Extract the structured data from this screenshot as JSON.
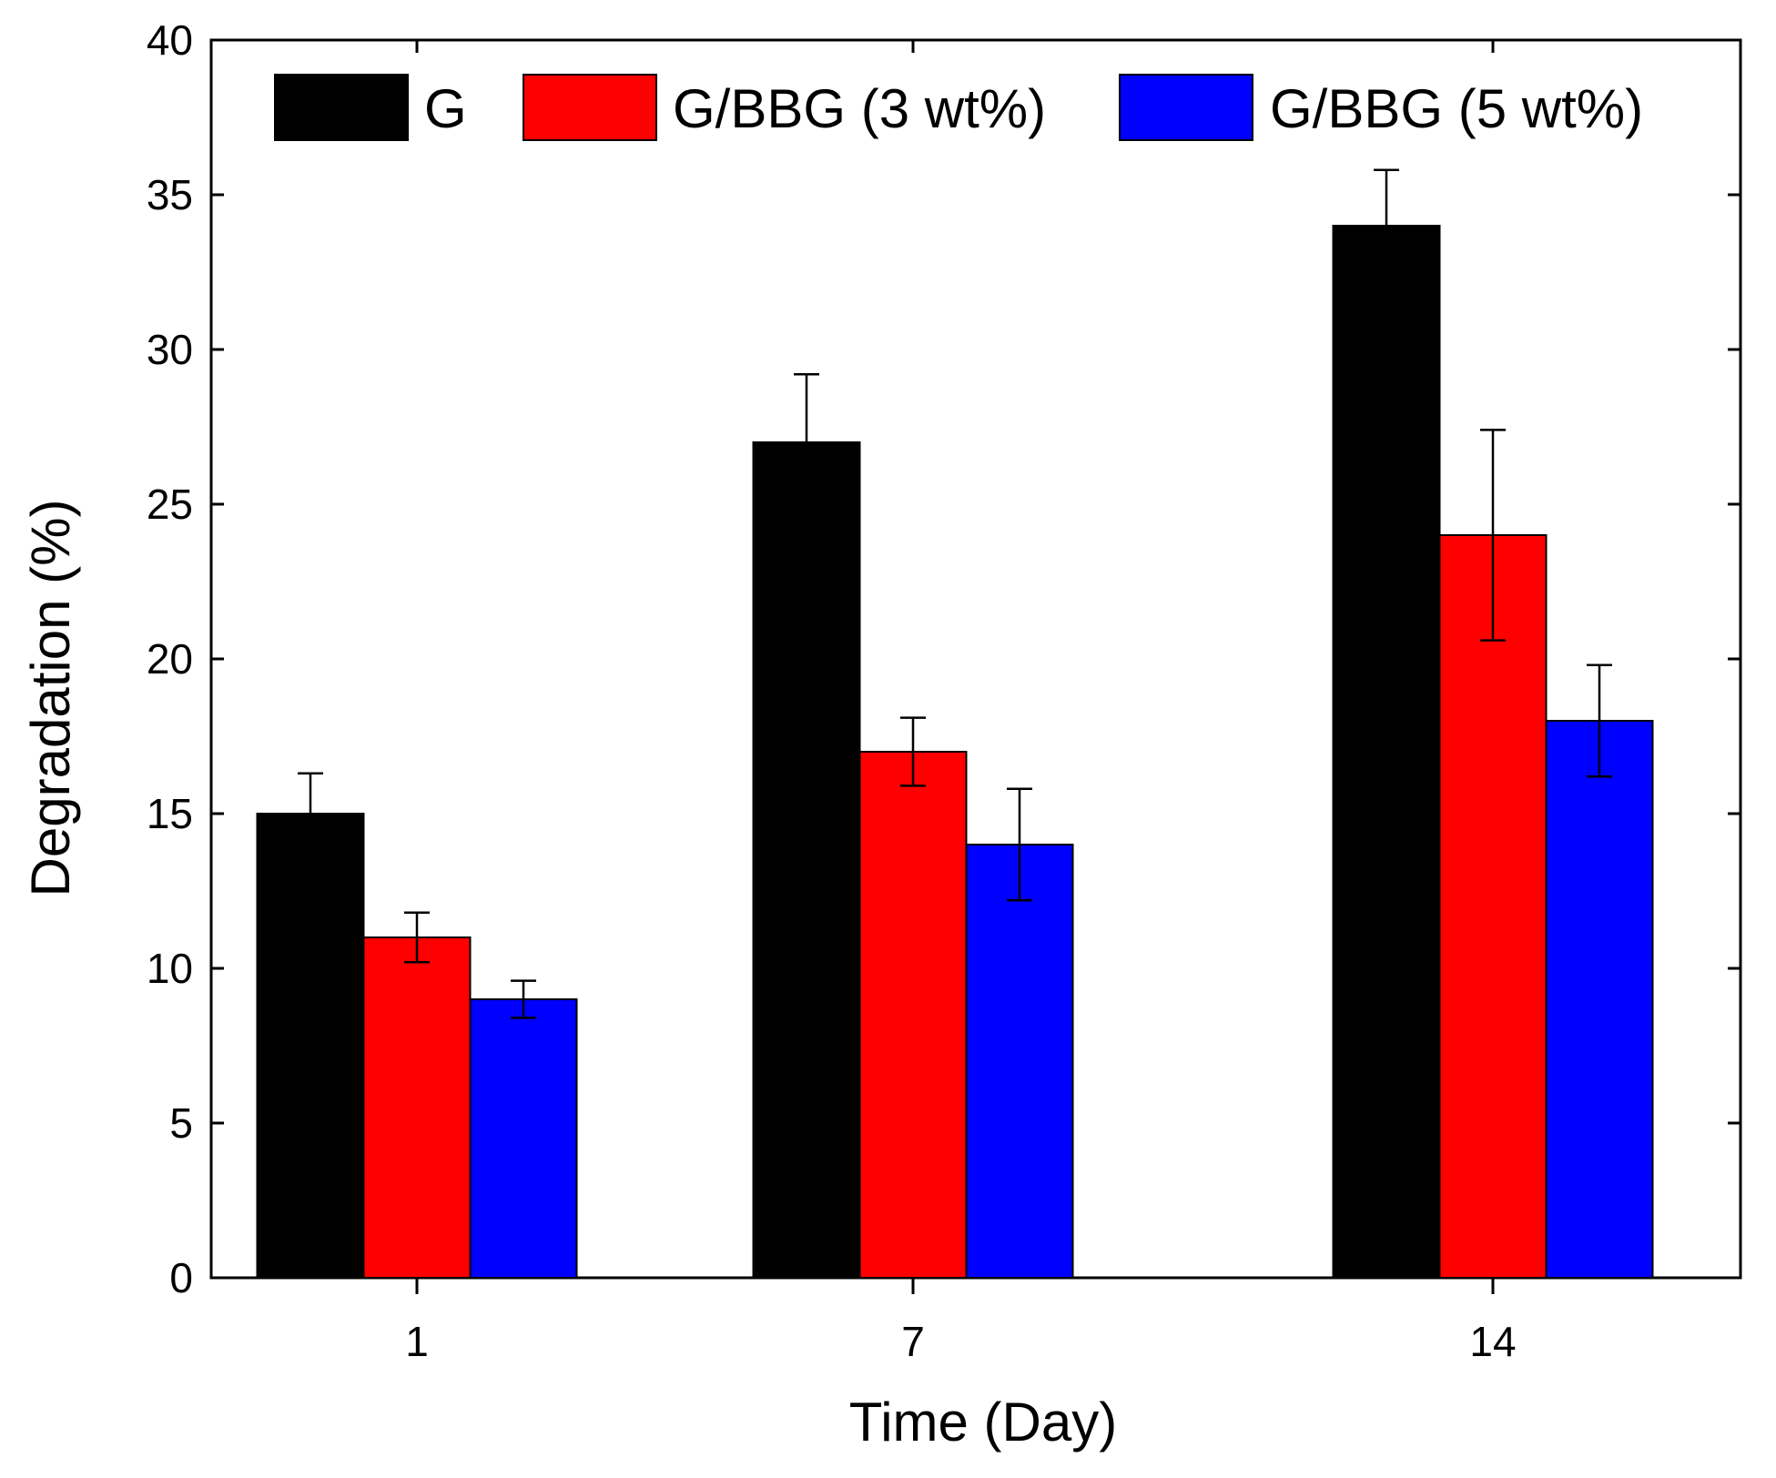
{
  "chart_data": {
    "type": "bar",
    "title": "",
    "xlabel": "Time (Day)",
    "ylabel": "Degradation (%)",
    "ylim": [
      0,
      40
    ],
    "yticks": [
      0,
      5,
      10,
      15,
      20,
      25,
      30,
      35,
      40
    ],
    "categories": [
      "1",
      "7",
      "14"
    ],
    "legend_position": "top",
    "series": [
      {
        "name": "G",
        "color": "#000000",
        "values": [
          15,
          27,
          34
        ],
        "errors": [
          1.3,
          2.2,
          1.8
        ]
      },
      {
        "name": "G/BBG (3 wt%)",
        "color": "#ff0000",
        "values": [
          11,
          17,
          24
        ],
        "errors": [
          0.8,
          1.1,
          3.4
        ]
      },
      {
        "name": "G/BBG (5 wt%)",
        "color": "#0000ff",
        "values": [
          9,
          14,
          18
        ],
        "errors": [
          0.6,
          1.8,
          1.8
        ]
      }
    ]
  }
}
